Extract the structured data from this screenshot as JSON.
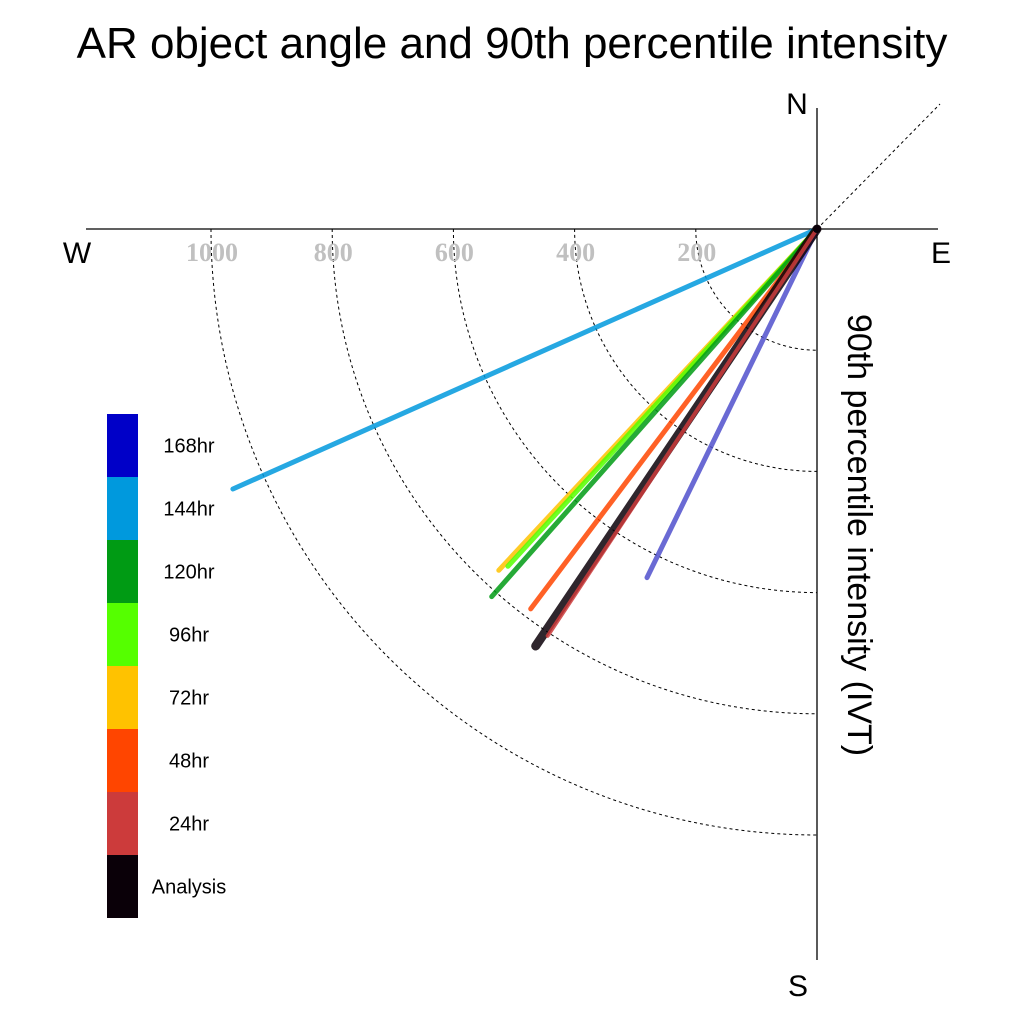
{
  "chart_data": {
    "type": "polar-vector",
    "title": "AR object angle and 90th percentile intensity",
    "radial_axis_label": "90th percentile intensity (IVT)",
    "compass": {
      "north": "N",
      "south": "S",
      "east": "E",
      "west": "W"
    },
    "ring_values": [
      200,
      400,
      600,
      800,
      1000
    ],
    "ring_labels": [
      "200",
      "400",
      "600",
      "800",
      "1000"
    ],
    "rmax": 1000,
    "series": [
      {
        "name": "Analysis",
        "color": "#0a0008",
        "angle_deg": 56.0,
        "intensity": 830
      },
      {
        "name": "24hr",
        "color": "#cc3b3b",
        "angle_deg": 56.5,
        "intensity": 805
      },
      {
        "name": "48hr",
        "color": "#ff4500",
        "angle_deg": 53.0,
        "intensity": 785
      },
      {
        "name": "72hr",
        "color": "#ffc200",
        "angle_deg": 47.0,
        "intensity": 770
      },
      {
        "name": "96hr",
        "color": "#55ff00",
        "angle_deg": 47.5,
        "intensity": 755
      },
      {
        "name": "120hr",
        "color": "#009b14",
        "angle_deg": 48.5,
        "intensity": 810
      },
      {
        "name": "144hr",
        "color": "#0099dd",
        "angle_deg": 24.0,
        "intensity": 1055
      },
      {
        "name": "168hr",
        "color": "#5050cc",
        "angle_deg": 64.0,
        "intensity": 640
      }
    ],
    "legend_order": [
      "168hr",
      "144hr",
      "120hr",
      "96hr",
      "72hr",
      "48hr",
      "24hr",
      "Analysis"
    ],
    "legend_colors": [
      "#0000c8",
      "#0099dd",
      "#009b14",
      "#55ff00",
      "#ffc200",
      "#ff4500",
      "#cc3b3b",
      "#0a0008"
    ]
  }
}
